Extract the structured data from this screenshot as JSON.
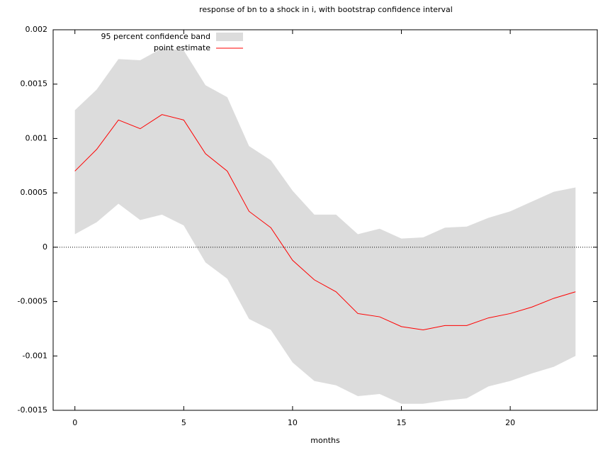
{
  "chart_data": {
    "type": "band-line",
    "title": "response of bn to a shock in i, with bootstrap confidence interval",
    "xlabel": "months",
    "x": [
      0,
      1,
      2,
      3,
      4,
      5,
      6,
      7,
      8,
      9,
      10,
      11,
      12,
      13,
      14,
      15,
      16,
      17,
      18,
      19,
      20,
      21,
      22,
      23
    ],
    "series": [
      {
        "name": "95 percent confidence band",
        "color": "#dcdcdc",
        "upper": [
          0.00126,
          0.00145,
          0.00173,
          0.00172,
          0.00183,
          0.00181,
          0.00149,
          0.00138,
          0.00093,
          0.0008,
          0.00052,
          0.0003,
          0.0003,
          0.00012,
          0.00017,
          8e-05,
          9e-05,
          0.00018,
          0.00019,
          0.00027,
          0.00033,
          0.00042,
          0.00051,
          0.00055
        ],
        "lower": [
          0.00012,
          0.00023,
          0.0004,
          0.00025,
          0.0003,
          0.0002,
          -0.00014,
          -0.00029,
          -0.00066,
          -0.00076,
          -0.00106,
          -0.00123,
          -0.00127,
          -0.00137,
          -0.00135,
          -0.00144,
          -0.00144,
          -0.00141,
          -0.00139,
          -0.00128,
          -0.00123,
          -0.00116,
          -0.0011,
          -0.001
        ]
      },
      {
        "name": "point estimate",
        "color": "#ff0000",
        "values": [
          0.0007,
          0.0009,
          0.00117,
          0.00109,
          0.00122,
          0.00117,
          0.00086,
          0.0007,
          0.00033,
          0.00018,
          -0.00012,
          -0.0003,
          -0.00041,
          -0.00061,
          -0.00064,
          -0.00073,
          -0.00076,
          -0.00072,
          -0.00072,
          -0.00065,
          -0.00061,
          -0.00055,
          -0.00047,
          -0.00041
        ]
      }
    ],
    "xlim": [
      -1,
      24
    ],
    "xticks": [
      0,
      5,
      10,
      15,
      20
    ],
    "ylim": [
      -0.0015,
      0.002
    ],
    "yticks": [
      -0.0015,
      -0.001,
      -0.0005,
      0,
      0.0005,
      0.001,
      0.0015,
      0.002
    ],
    "zero_line": true,
    "legend": "top left"
  }
}
